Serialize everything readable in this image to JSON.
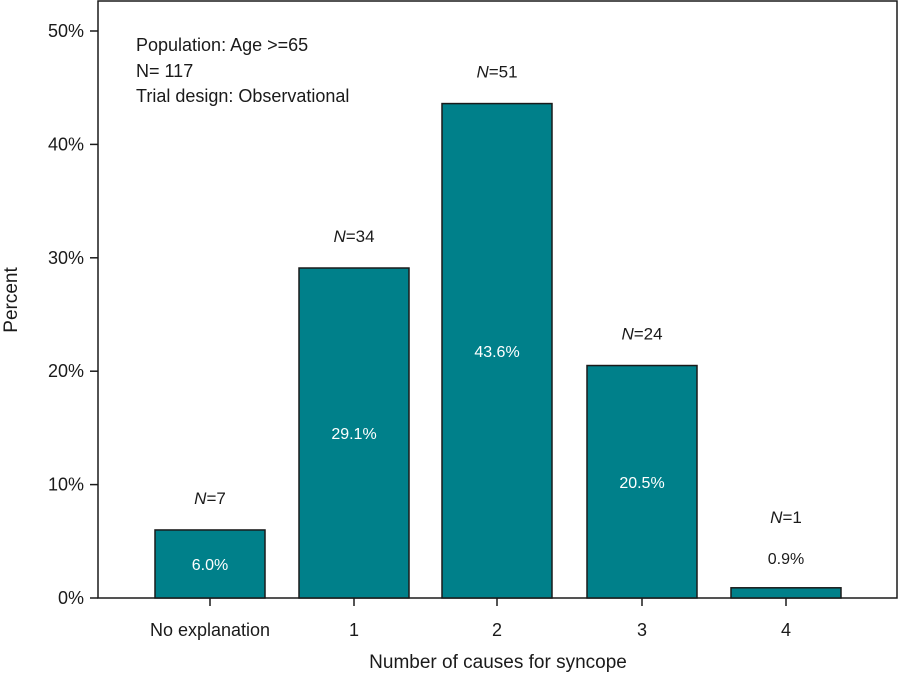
{
  "chart_data": {
    "type": "bar",
    "title": "",
    "xlabel": "Number of causes for syncope",
    "ylabel": "Percent",
    "ylim": [
      0,
      50
    ],
    "yticks": [
      {
        "value": 0,
        "label": "0%"
      },
      {
        "value": 10,
        "label": "10%"
      },
      {
        "value": 20,
        "label": "20%"
      },
      {
        "value": 30,
        "label": "30%"
      },
      {
        "value": 40,
        "label": "40%"
      },
      {
        "value": 50,
        "label": "50%"
      }
    ],
    "categories": [
      "No explanation",
      "1",
      "2",
      "3",
      "4"
    ],
    "values": [
      6.0,
      29.1,
      43.6,
      20.5,
      0.9
    ],
    "value_labels": [
      "6.0%",
      "29.1%",
      "43.6%",
      "20.5%",
      "0.9%"
    ],
    "n_prefix": "N",
    "n_counts": [
      "=7",
      "=34",
      "=51",
      "=24",
      "=1"
    ],
    "bar_color": "#00808a",
    "grid": false,
    "annotations": [
      "Population: Age >=65",
      "N= 117",
      "Trial design: Observational"
    ]
  }
}
